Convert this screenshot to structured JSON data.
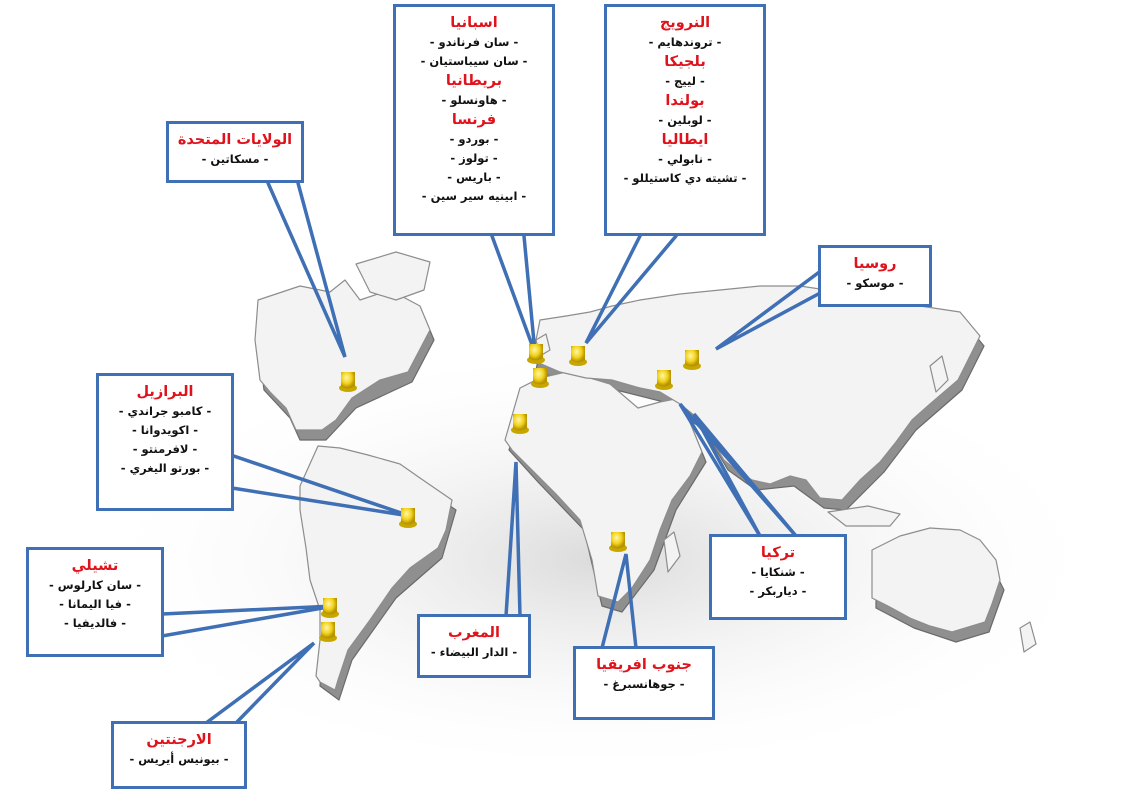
{
  "colors": {
    "box_border": "#3f6fb4",
    "country_text": "#e0121b",
    "city_text": "#111111",
    "pin": "#f2d21b",
    "land": "#f4f4f4"
  },
  "callouts": {
    "usa": {
      "country": "الولايات المتحدة",
      "cities": [
        "مسكاتين"
      ]
    },
    "iberia": {
      "blocks": [
        {
          "country": "اسبانيا",
          "cities": [
            "سان فرناندو",
            "سان سيباستيان"
          ]
        },
        {
          "country": "بريطانيا",
          "cities": [
            "هاونسلو"
          ]
        },
        {
          "country": "فرنسا",
          "cities": [
            "بوردو",
            "تولوز",
            "باريس",
            "ابينيه سير سين"
          ]
        }
      ]
    },
    "europe": {
      "blocks": [
        {
          "country": "النرويج",
          "cities": [
            "تروندهايم"
          ]
        },
        {
          "country": "بلجيكا",
          "cities": [
            "لييج"
          ]
        },
        {
          "country": "بولندا",
          "cities": [
            "لوبلين"
          ]
        },
        {
          "country": "ايطاليا",
          "cities": [
            "نابولي",
            "تشيته دي كاستيللو"
          ]
        }
      ]
    },
    "russia": {
      "country": "روسيا",
      "cities": [
        "موسكو"
      ]
    },
    "brazil": {
      "country": "البرازيل",
      "cities": [
        "كامبو جراندي",
        "اكويدوانا",
        "لافرمنتو",
        "بورتو اليغري"
      ]
    },
    "chile": {
      "country": "تشيلي",
      "cities": [
        "سان كارلوس",
        "فيا اليمانا",
        "فالديفيا"
      ]
    },
    "argentina": {
      "country": "الارجنتين",
      "cities": [
        "بيونيس أيريس"
      ]
    },
    "morocco": {
      "country": "المغرب",
      "cities": [
        "الدار البيضاء"
      ]
    },
    "safrica": {
      "country": "جنوب افريقيا",
      "cities": [
        "جوهانسبرغ"
      ]
    },
    "turkey": {
      "country": "تركيا",
      "cities": [
        "شنكايا",
        "دياربكر"
      ]
    }
  }
}
